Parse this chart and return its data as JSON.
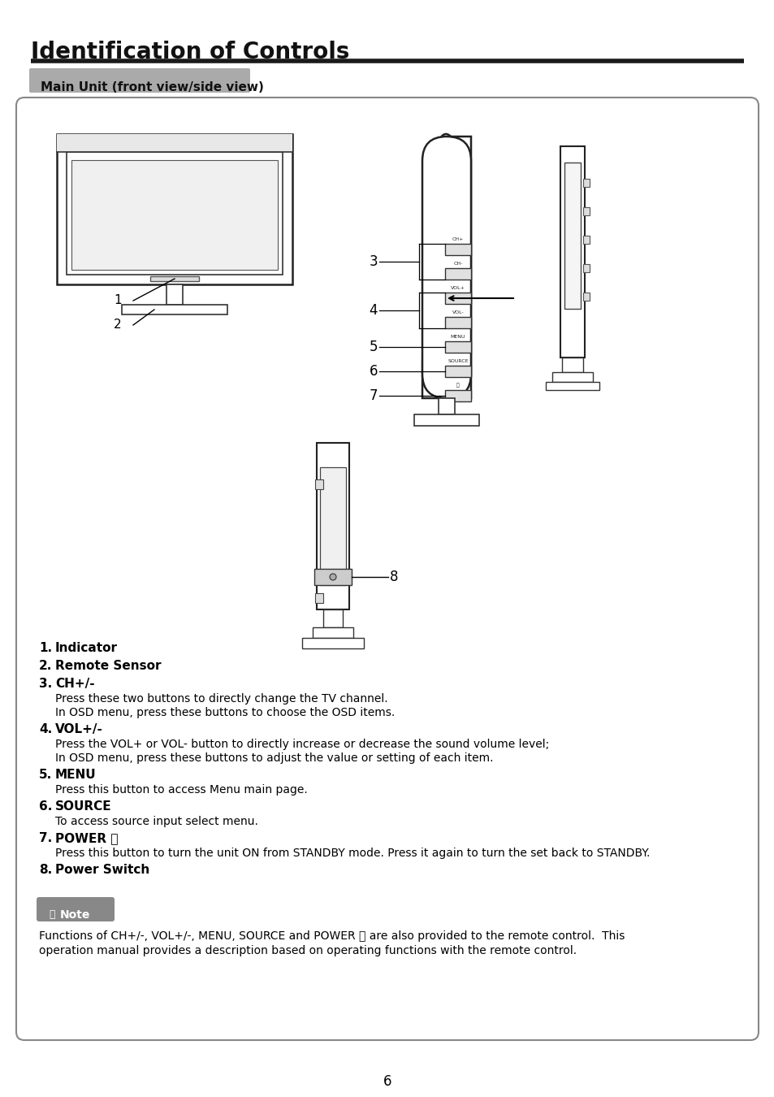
{
  "title": "Identification of Controls",
  "subtitle": "Main Unit (front view/side view)",
  "page_number": "6",
  "bg_color": "#ffffff",
  "title_color": "#1a1a1a",
  "subtitle_bg": "#aaaaaa",
  "box_border_color": "#777777",
  "items": [
    {
      "num": "1",
      "bold": "Indicator",
      "desc": ""
    },
    {
      "num": "2",
      "bold": "Remote Sensor",
      "desc": ""
    },
    {
      "num": "3",
      "bold": "CH+/-",
      "desc1": "Press these two buttons to directly change the TV channel.",
      "desc2": "In OSD menu, press these buttons to choose the OSD items."
    },
    {
      "num": "4",
      "bold": "VOL+/-",
      "desc1": "Press the VOL+ or VOL- button to directly increase or decrease the sound volume level;",
      "desc2": "In OSD menu, press these buttons to adjust the value or setting of each item."
    },
    {
      "num": "5",
      "bold": "MENU",
      "desc1": "Press this button to access Menu main page.",
      "desc2": ""
    },
    {
      "num": "6",
      "bold": "SOURCE",
      "desc1": "To access source input select menu.",
      "desc2": ""
    },
    {
      "num": "7",
      "bold": "POWER ⏻",
      "desc1": "Press this button to turn the unit ON from STANDBY mode. Press it again to turn the set back to STANDBY.",
      "desc2": ""
    },
    {
      "num": "8",
      "bold": "Power Switch",
      "desc1": "",
      "desc2": ""
    }
  ],
  "note_bold": "CH+/-, VOL+/-, MENU, SOURCE and POWER ⏻",
  "note_line1_pre": "Functions of ",
  "note_line1_bold": "CH+/-, VOL+/-, MENU, SOURCE",
  "note_line1_mid": " and ",
  "note_line1_bold2": "POWER ⏻",
  "note_line1_post": " are also provided to the remote control.  This",
  "note_line2": "operation manual provides a description based on operating functions with the remote control."
}
